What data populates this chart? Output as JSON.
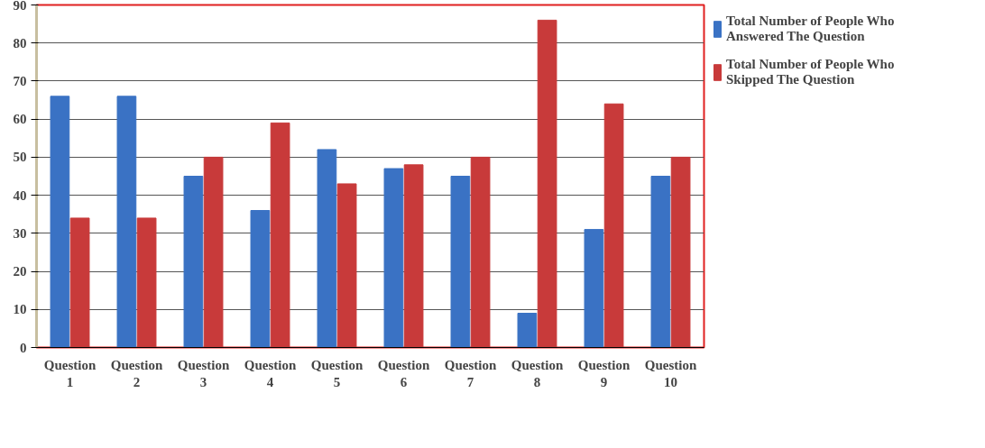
{
  "chart_data": {
    "type": "bar",
    "categories": [
      "Question 1",
      "Question 2",
      "Question 3",
      "Question 4",
      "Question 5",
      "Question 6",
      "Question 7",
      "Question 8",
      "Question 9",
      "Question 10"
    ],
    "series": [
      {
        "name": "Total Number of People Who Answered The Question",
        "color": "#3a72c4",
        "values": [
          66,
          66,
          45,
          36,
          52,
          47,
          45,
          9,
          31,
          45
        ]
      },
      {
        "name": "Total Number of People Who Skipped The Question",
        "color": "#c83a3a",
        "values": [
          34,
          34,
          50,
          59,
          43,
          48,
          50,
          86,
          64,
          50
        ]
      }
    ],
    "ylim": [
      0,
      90
    ],
    "yticks": [
      0,
      10,
      20,
      30,
      40,
      50,
      60,
      70,
      80,
      90
    ],
    "grid": "y",
    "legend": "top right"
  }
}
